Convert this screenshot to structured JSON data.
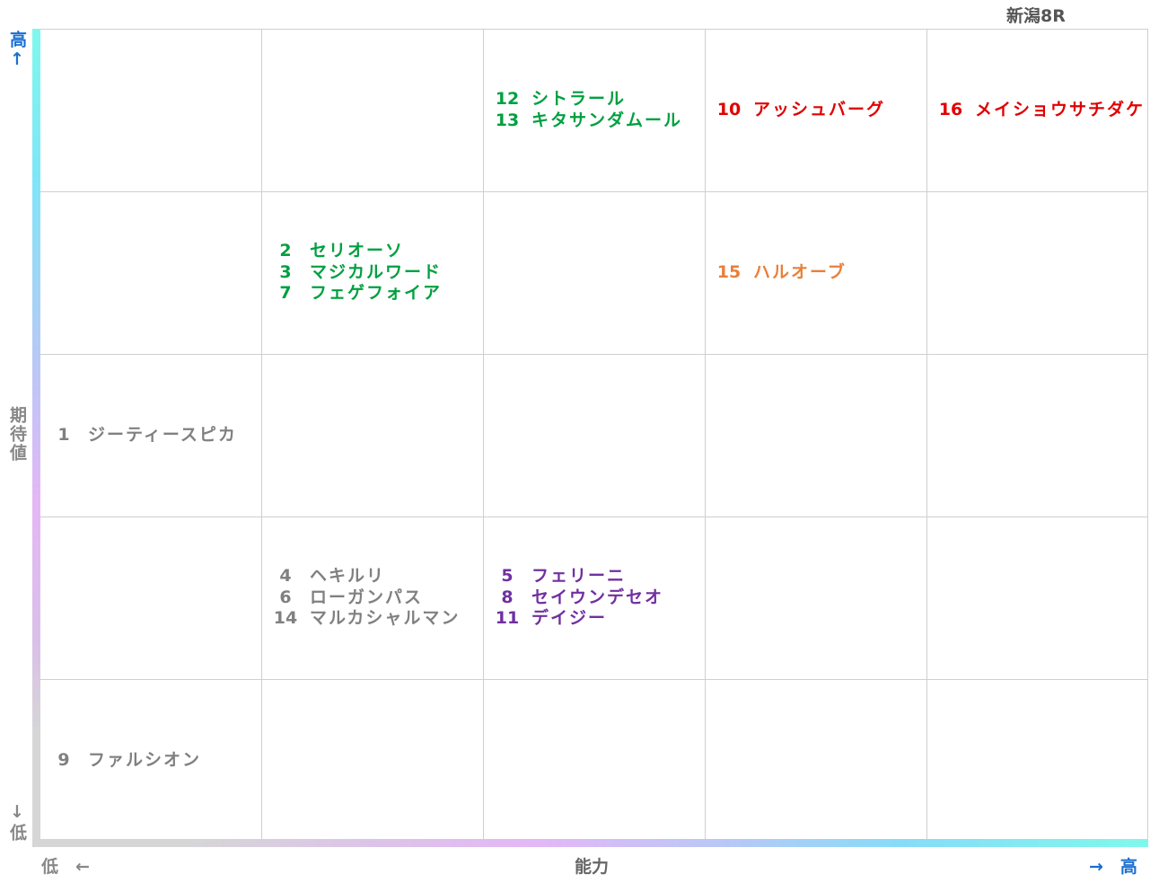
{
  "title": "新潟8R",
  "chart_data": {
    "type": "scatter",
    "xlabel": "能力",
    "ylabel": "期待値",
    "x_low_label": "低　←",
    "x_high_label": "→　高",
    "y_high_label": "高↑",
    "y_low_label": "↓低",
    "columns": 5,
    "rows": 5,
    "cells": [
      {
        "col": 2,
        "row": 0,
        "color": "#00a040",
        "horses": [
          {
            "num": "12",
            "name": "シトラール"
          },
          {
            "num": "13",
            "name": "キタサンダムール"
          }
        ]
      },
      {
        "col": 3,
        "row": 0,
        "color": "#e00000",
        "horses": [
          {
            "num": "10",
            "name": "アッシュバーグ"
          }
        ]
      },
      {
        "col": 4,
        "row": 0,
        "color": "#e00000",
        "horses": [
          {
            "num": "16",
            "name": "メイショウサチダケ"
          }
        ]
      },
      {
        "col": 1,
        "row": 1,
        "color": "#00a040",
        "horses": [
          {
            "num": "2",
            "name": "セリオーソ"
          },
          {
            "num": "3",
            "name": "マジカルワード"
          },
          {
            "num": "7",
            "name": "フェゲフォイア"
          }
        ]
      },
      {
        "col": 3,
        "row": 1,
        "color": "#e8803a",
        "horses": [
          {
            "num": "15",
            "name": "ハルオーブ"
          }
        ]
      },
      {
        "col": 0,
        "row": 2,
        "color": "#808080",
        "horses": [
          {
            "num": "1",
            "name": "ジーティースピカ"
          }
        ]
      },
      {
        "col": 1,
        "row": 3,
        "color": "#808080",
        "horses": [
          {
            "num": "4",
            "name": "ヘキルリ"
          },
          {
            "num": "6",
            "name": "ローガンパス"
          },
          {
            "num": "14",
            "name": "マルカシャルマン"
          }
        ]
      },
      {
        "col": 2,
        "row": 3,
        "color": "#7030a0",
        "horses": [
          {
            "num": "5",
            "name": "フェリーニ"
          },
          {
            "num": "8",
            "name": "セイウンデセオ"
          },
          {
            "num": "11",
            "name": "デイジー"
          }
        ]
      },
      {
        "col": 0,
        "row": 4,
        "color": "#808080",
        "horses": [
          {
            "num": "9",
            "name": "ファルシオン"
          }
        ]
      }
    ],
    "colors": {
      "high": "#1a6fd0",
      "low": "#888888"
    }
  }
}
